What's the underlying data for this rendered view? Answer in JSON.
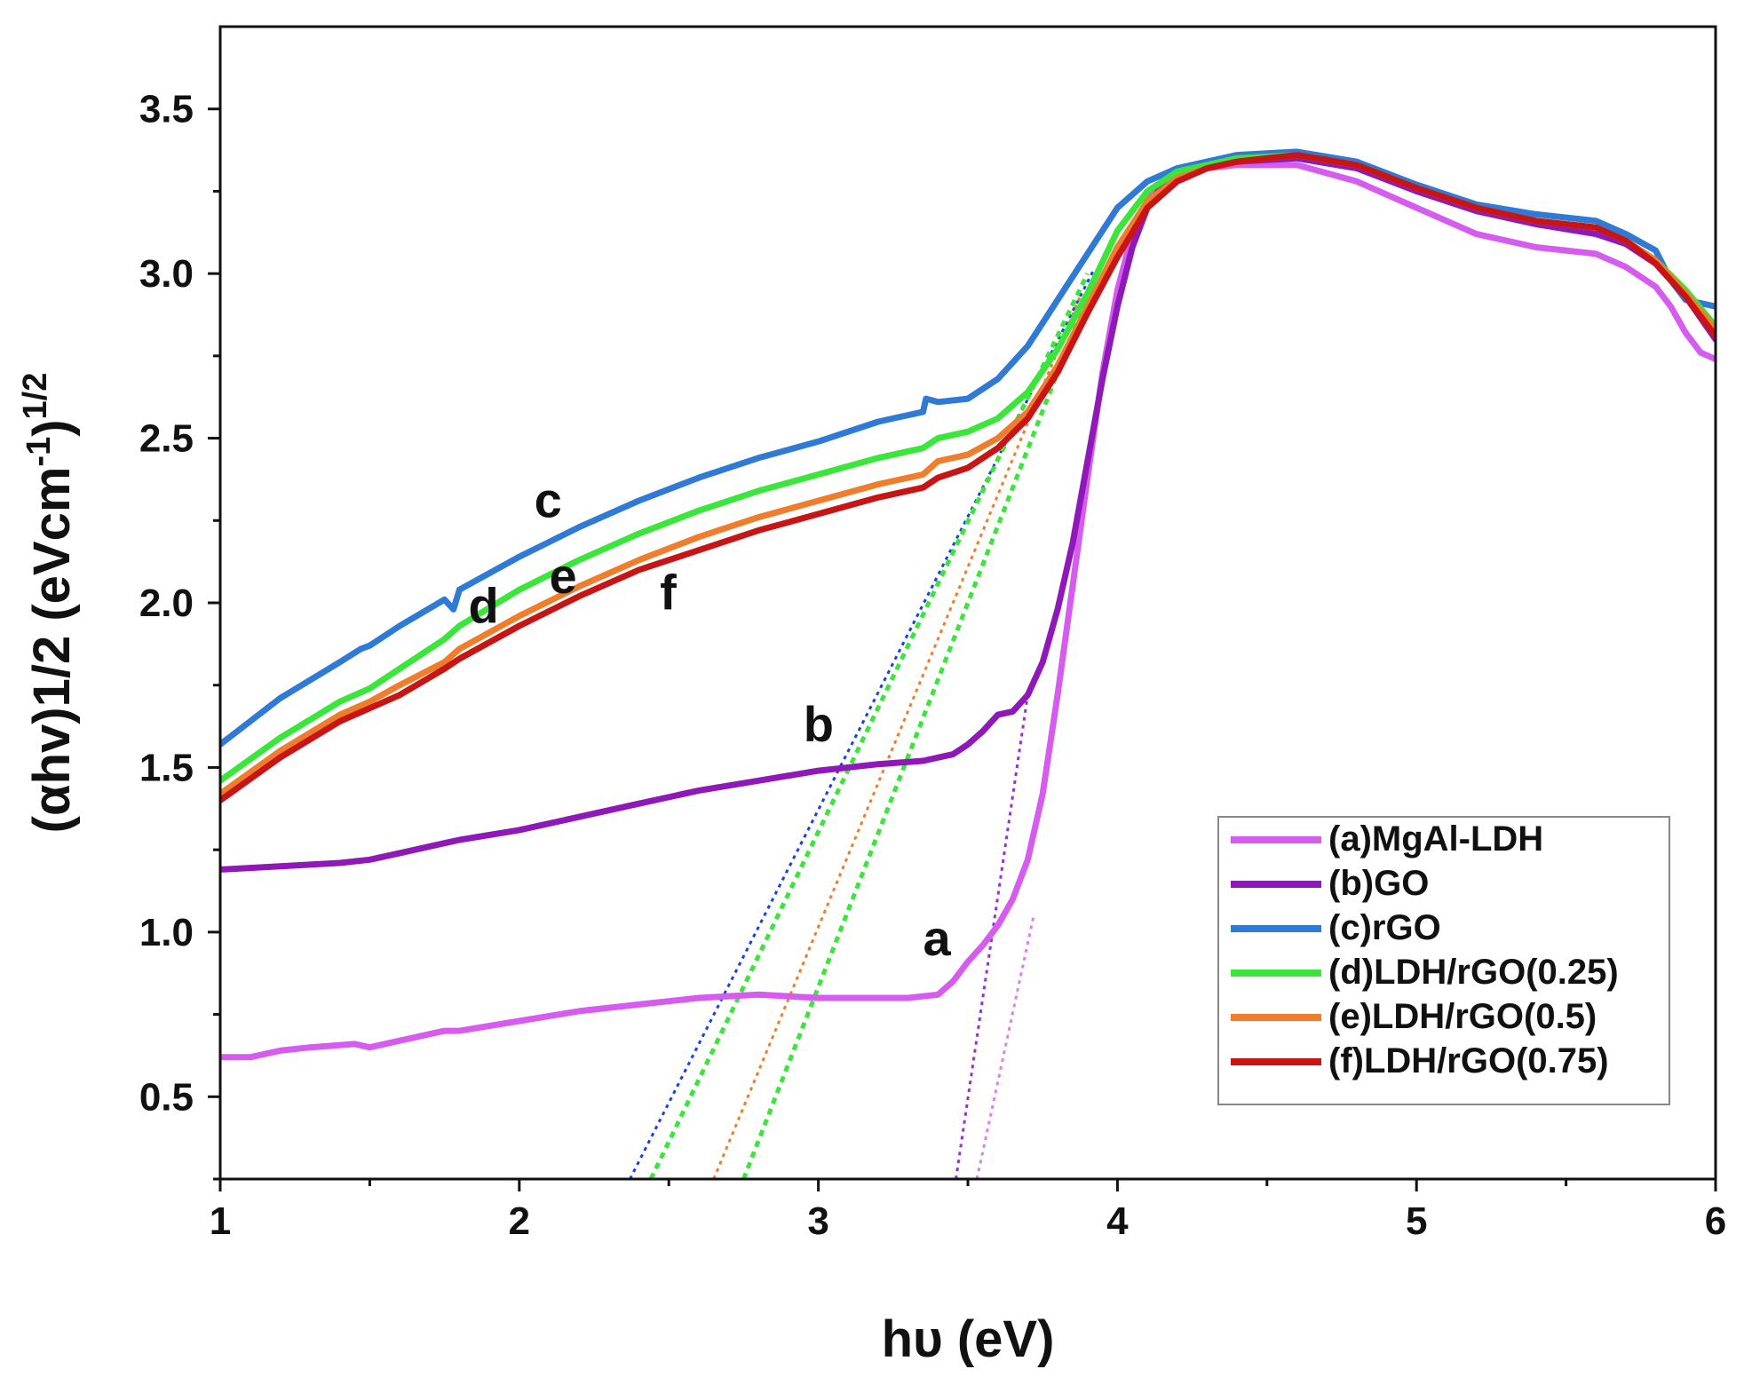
{
  "chart_data": {
    "type": "line",
    "title": "",
    "xlabel": "hυ (eV)",
    "ylabel_main": "(αhv)1/2 (eVcm",
    "ylabel_sup1": "-1",
    "ylabel_close": ")",
    "ylabel_sup2": "1/2",
    "xlim": [
      1,
      6
    ],
    "ylim": [
      0.25,
      3.75
    ],
    "x_ticks": [
      1,
      2,
      3,
      4,
      5,
      6
    ],
    "x_tick_labels": [
      "1",
      "2",
      "3",
      "4",
      "5",
      "6"
    ],
    "y_ticks": [
      0.5,
      1.0,
      1.5,
      2.0,
      2.5,
      3.0,
      3.5
    ],
    "y_tick_labels": [
      "0.5",
      "1.0",
      "1.5",
      "2.0",
      "2.5",
      "3.0",
      "3.5"
    ],
    "grid": false,
    "legend_position": "bottom-right",
    "series": [
      {
        "id": "a",
        "name": "(a)MgAl-LDH",
        "color": "#d65cf0",
        "x": [
          1.0,
          1.1,
          1.2,
          1.3,
          1.45,
          1.5,
          1.6,
          1.75,
          1.8,
          2.0,
          2.2,
          2.4,
          2.6,
          2.8,
          3.0,
          3.2,
          3.3,
          3.4,
          3.45,
          3.5,
          3.55,
          3.6,
          3.65,
          3.7,
          3.75,
          3.8,
          3.85,
          3.9,
          3.95,
          4.0,
          4.05,
          4.1,
          4.15,
          4.2,
          4.3,
          4.4,
          4.6,
          4.8,
          5.0,
          5.2,
          5.4,
          5.6,
          5.7,
          5.8,
          5.85,
          5.9,
          5.95,
          6.0
        ],
        "y": [
          0.62,
          0.62,
          0.64,
          0.65,
          0.66,
          0.65,
          0.67,
          0.7,
          0.7,
          0.73,
          0.76,
          0.78,
          0.8,
          0.81,
          0.8,
          0.8,
          0.8,
          0.81,
          0.85,
          0.91,
          0.96,
          1.02,
          1.1,
          1.22,
          1.42,
          1.72,
          2.05,
          2.38,
          2.7,
          2.95,
          3.12,
          3.22,
          3.28,
          3.31,
          3.32,
          3.33,
          3.33,
          3.28,
          3.2,
          3.12,
          3.08,
          3.06,
          3.02,
          2.96,
          2.9,
          2.82,
          2.76,
          2.74
        ]
      },
      {
        "id": "b",
        "name": "(b)GO",
        "color": "#8e18b8",
        "x": [
          1.0,
          1.2,
          1.4,
          1.5,
          1.6,
          1.75,
          1.8,
          2.0,
          2.2,
          2.4,
          2.6,
          2.8,
          3.0,
          3.2,
          3.35,
          3.45,
          3.5,
          3.55,
          3.6,
          3.65,
          3.7,
          3.75,
          3.8,
          3.85,
          3.9,
          3.95,
          4.0,
          4.05,
          4.1,
          4.15,
          4.2,
          4.3,
          4.4,
          4.6,
          4.8,
          5.0,
          5.2,
          5.4,
          5.6,
          5.7,
          5.8,
          5.9,
          6.0
        ],
        "y": [
          1.19,
          1.2,
          1.21,
          1.22,
          1.24,
          1.27,
          1.28,
          1.31,
          1.35,
          1.39,
          1.43,
          1.46,
          1.49,
          1.51,
          1.52,
          1.54,
          1.57,
          1.61,
          1.66,
          1.67,
          1.72,
          1.82,
          1.98,
          2.18,
          2.43,
          2.68,
          2.9,
          3.08,
          3.2,
          3.27,
          3.3,
          3.32,
          3.34,
          3.35,
          3.32,
          3.25,
          3.19,
          3.15,
          3.12,
          3.09,
          3.03,
          2.93,
          2.8
        ]
      },
      {
        "id": "c",
        "name": "(c)rGO",
        "color": "#2e7ad6",
        "x": [
          1.0,
          1.2,
          1.4,
          1.47,
          1.5,
          1.6,
          1.75,
          1.78,
          1.8,
          2.0,
          2.2,
          2.4,
          2.6,
          2.8,
          3.0,
          3.2,
          3.35,
          3.36,
          3.4,
          3.5,
          3.6,
          3.7,
          3.8,
          3.9,
          4.0,
          4.1,
          4.2,
          4.3,
          4.4,
          4.6,
          4.8,
          5.0,
          5.2,
          5.4,
          5.6,
          5.7,
          5.8,
          5.85,
          5.9,
          6.0
        ],
        "y": [
          1.57,
          1.71,
          1.82,
          1.86,
          1.87,
          1.93,
          2.01,
          1.98,
          2.04,
          2.14,
          2.23,
          2.31,
          2.38,
          2.44,
          2.49,
          2.55,
          2.58,
          2.62,
          2.61,
          2.62,
          2.68,
          2.78,
          2.92,
          3.06,
          3.2,
          3.28,
          3.32,
          3.34,
          3.36,
          3.37,
          3.34,
          3.27,
          3.21,
          3.18,
          3.16,
          3.12,
          3.07,
          2.98,
          2.92,
          2.9
        ]
      },
      {
        "id": "d",
        "name": "(d)LDH/rGO(0.25)",
        "color": "#3be63b",
        "x": [
          1.0,
          1.2,
          1.4,
          1.5,
          1.6,
          1.75,
          1.8,
          2.0,
          2.2,
          2.4,
          2.6,
          2.8,
          3.0,
          3.2,
          3.35,
          3.4,
          3.5,
          3.6,
          3.7,
          3.8,
          3.9,
          4.0,
          4.1,
          4.2,
          4.3,
          4.4,
          4.6,
          4.8,
          5.0,
          5.2,
          5.4,
          5.6,
          5.7,
          5.8,
          5.9,
          6.0
        ],
        "y": [
          1.46,
          1.59,
          1.7,
          1.74,
          1.8,
          1.89,
          1.93,
          2.04,
          2.13,
          2.21,
          2.28,
          2.34,
          2.39,
          2.44,
          2.47,
          2.5,
          2.52,
          2.56,
          2.64,
          2.77,
          2.94,
          3.13,
          3.25,
          3.31,
          3.33,
          3.35,
          3.36,
          3.33,
          3.26,
          3.2,
          3.16,
          3.14,
          3.1,
          3.04,
          2.95,
          2.84
        ]
      },
      {
        "id": "e",
        "name": "(e)LDH/rGO(0.5)",
        "color": "#f07d2b",
        "x": [
          1.0,
          1.2,
          1.4,
          1.5,
          1.6,
          1.75,
          1.8,
          2.0,
          2.2,
          2.4,
          2.6,
          2.8,
          3.0,
          3.2,
          3.35,
          3.4,
          3.5,
          3.6,
          3.7,
          3.8,
          3.9,
          4.0,
          4.1,
          4.2,
          4.3,
          4.4,
          4.6,
          4.8,
          5.0,
          5.2,
          5.4,
          5.6,
          5.7,
          5.8,
          5.9,
          6.0
        ],
        "y": [
          1.42,
          1.55,
          1.66,
          1.7,
          1.75,
          1.82,
          1.86,
          1.96,
          2.05,
          2.13,
          2.2,
          2.26,
          2.31,
          2.36,
          2.39,
          2.43,
          2.45,
          2.5,
          2.58,
          2.72,
          2.9,
          3.08,
          3.22,
          3.29,
          3.32,
          3.34,
          3.36,
          3.33,
          3.26,
          3.2,
          3.16,
          3.14,
          3.1,
          3.04,
          2.94,
          2.83
        ]
      },
      {
        "id": "f",
        "name": "(f)LDH/rGO(0.75)",
        "color": "#c81414",
        "x": [
          1.0,
          1.2,
          1.4,
          1.5,
          1.6,
          1.75,
          1.8,
          2.0,
          2.2,
          2.4,
          2.6,
          2.8,
          3.0,
          3.2,
          3.35,
          3.4,
          3.5,
          3.6,
          3.7,
          3.8,
          3.9,
          4.0,
          4.1,
          4.2,
          4.3,
          4.4,
          4.6,
          4.8,
          5.0,
          5.2,
          5.4,
          5.6,
          5.7,
          5.8,
          5.9,
          6.0
        ],
        "y": [
          1.4,
          1.53,
          1.64,
          1.68,
          1.72,
          1.8,
          1.83,
          1.93,
          2.02,
          2.1,
          2.16,
          2.22,
          2.27,
          2.32,
          2.35,
          2.38,
          2.41,
          2.47,
          2.56,
          2.7,
          2.88,
          3.05,
          3.2,
          3.28,
          3.32,
          3.34,
          3.36,
          3.33,
          3.26,
          3.2,
          3.16,
          3.14,
          3.1,
          3.03,
          2.93,
          2.81
        ]
      }
    ],
    "tangent_lines": [
      {
        "series": "a",
        "color": "#e07df5",
        "x": [
          3.53,
          3.72
        ],
        "y": [
          0.25,
          1.05
        ]
      },
      {
        "series": "b",
        "color": "#9b30d0",
        "x": [
          3.46,
          3.7
        ],
        "y": [
          0.25,
          1.72
        ]
      },
      {
        "series": "c",
        "color": "#1a3df0",
        "x": [
          2.37,
          3.92
        ],
        "y": [
          0.25,
          3.01
        ]
      },
      {
        "series": "d",
        "color": "#3be63b",
        "x": [
          2.44,
          3.9
        ],
        "y": [
          0.25,
          3.0
        ]
      },
      {
        "series": "d",
        "color": "#3be63b",
        "x": [
          2.75,
          3.92
        ],
        "y": [
          0.25,
          2.98
        ]
      },
      {
        "series": "e",
        "color": "#f07d2b",
        "x": [
          2.65,
          3.88
        ],
        "y": [
          0.25,
          2.94
        ]
      }
    ],
    "curve_labels": [
      {
        "text": "a",
        "x": 3.35,
        "y": 0.93
      },
      {
        "text": "b",
        "x": 2.95,
        "y": 1.58
      },
      {
        "text": "c",
        "x": 2.05,
        "y": 2.26
      },
      {
        "text": "d",
        "x": 1.83,
        "y": 1.94
      },
      {
        "text": "e",
        "x": 2.1,
        "y": 2.03
      },
      {
        "text": "f",
        "x": 2.47,
        "y": 1.98
      }
    ]
  }
}
